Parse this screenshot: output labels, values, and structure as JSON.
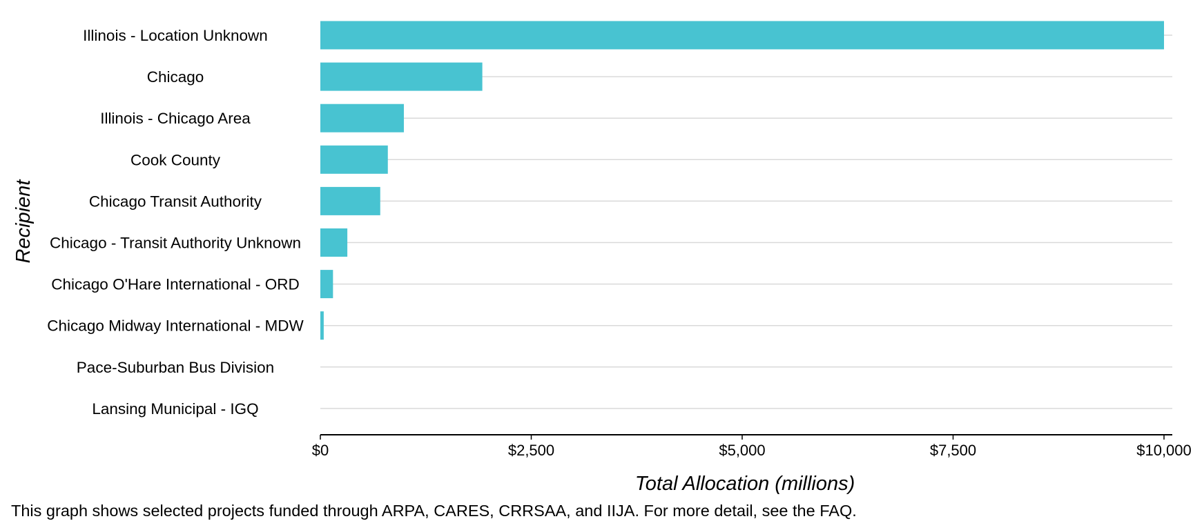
{
  "chart_data": {
    "type": "bar",
    "orientation": "horizontal",
    "categories": [
      "Illinois - Location Unknown",
      "Chicago",
      "Illinois - Chicago Area",
      "Cook County",
      "Chicago Transit Authority",
      "Chicago - Transit Authority Unknown",
      "Chicago O'Hare International - ORD",
      "Chicago Midway International - MDW",
      "Pace-Suburban Bus Division",
      "Lansing Municipal - IGQ"
    ],
    "values": [
      10000,
      1920,
      990,
      800,
      710,
      320,
      150,
      40,
      0,
      0
    ],
    "xlabel": "Total Allocation (millions)",
    "ylabel": "Recipient",
    "xlim": [
      0,
      10000
    ],
    "xticks": [
      0,
      2500,
      5000,
      7500,
      10000
    ],
    "xtick_labels": [
      "$0",
      "$2,500",
      "$5,000",
      "$7,500",
      "$10,000"
    ],
    "grid": "horizontal gridlines at each category",
    "legend": "none",
    "bar_color": "#48C3D1",
    "grid_color": "#D9D9D9",
    "axis_color": "#000000"
  },
  "caption": "This graph shows selected projects funded through ARPA, CARES, CRRSAA, and IIJA. For more detail, see the FAQ."
}
